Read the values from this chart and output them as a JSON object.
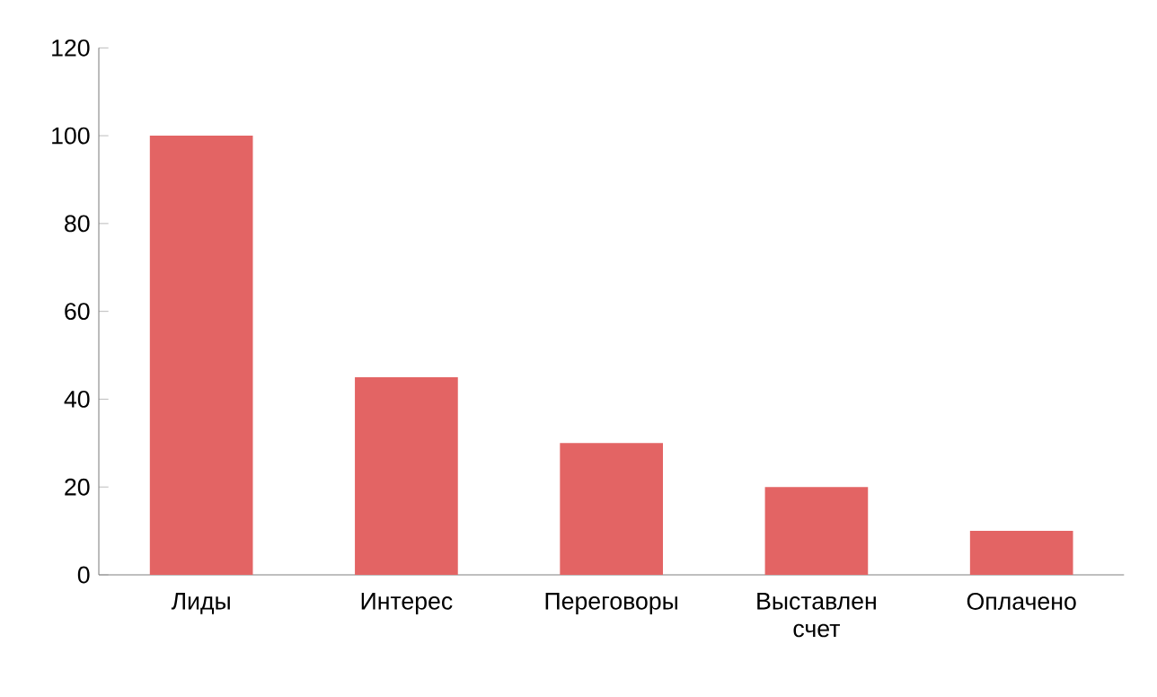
{
  "chart_data": {
    "type": "bar",
    "categories": [
      "Лиды",
      "Интерес",
      "Переговоры",
      "Выставлен счет",
      "Оплачено"
    ],
    "values": [
      100,
      45,
      30,
      20,
      10
    ],
    "color": "#e36464",
    "ylim": [
      0,
      120
    ],
    "yticks": [
      0,
      20,
      40,
      60,
      80,
      100,
      120
    ],
    "grid": false
  }
}
